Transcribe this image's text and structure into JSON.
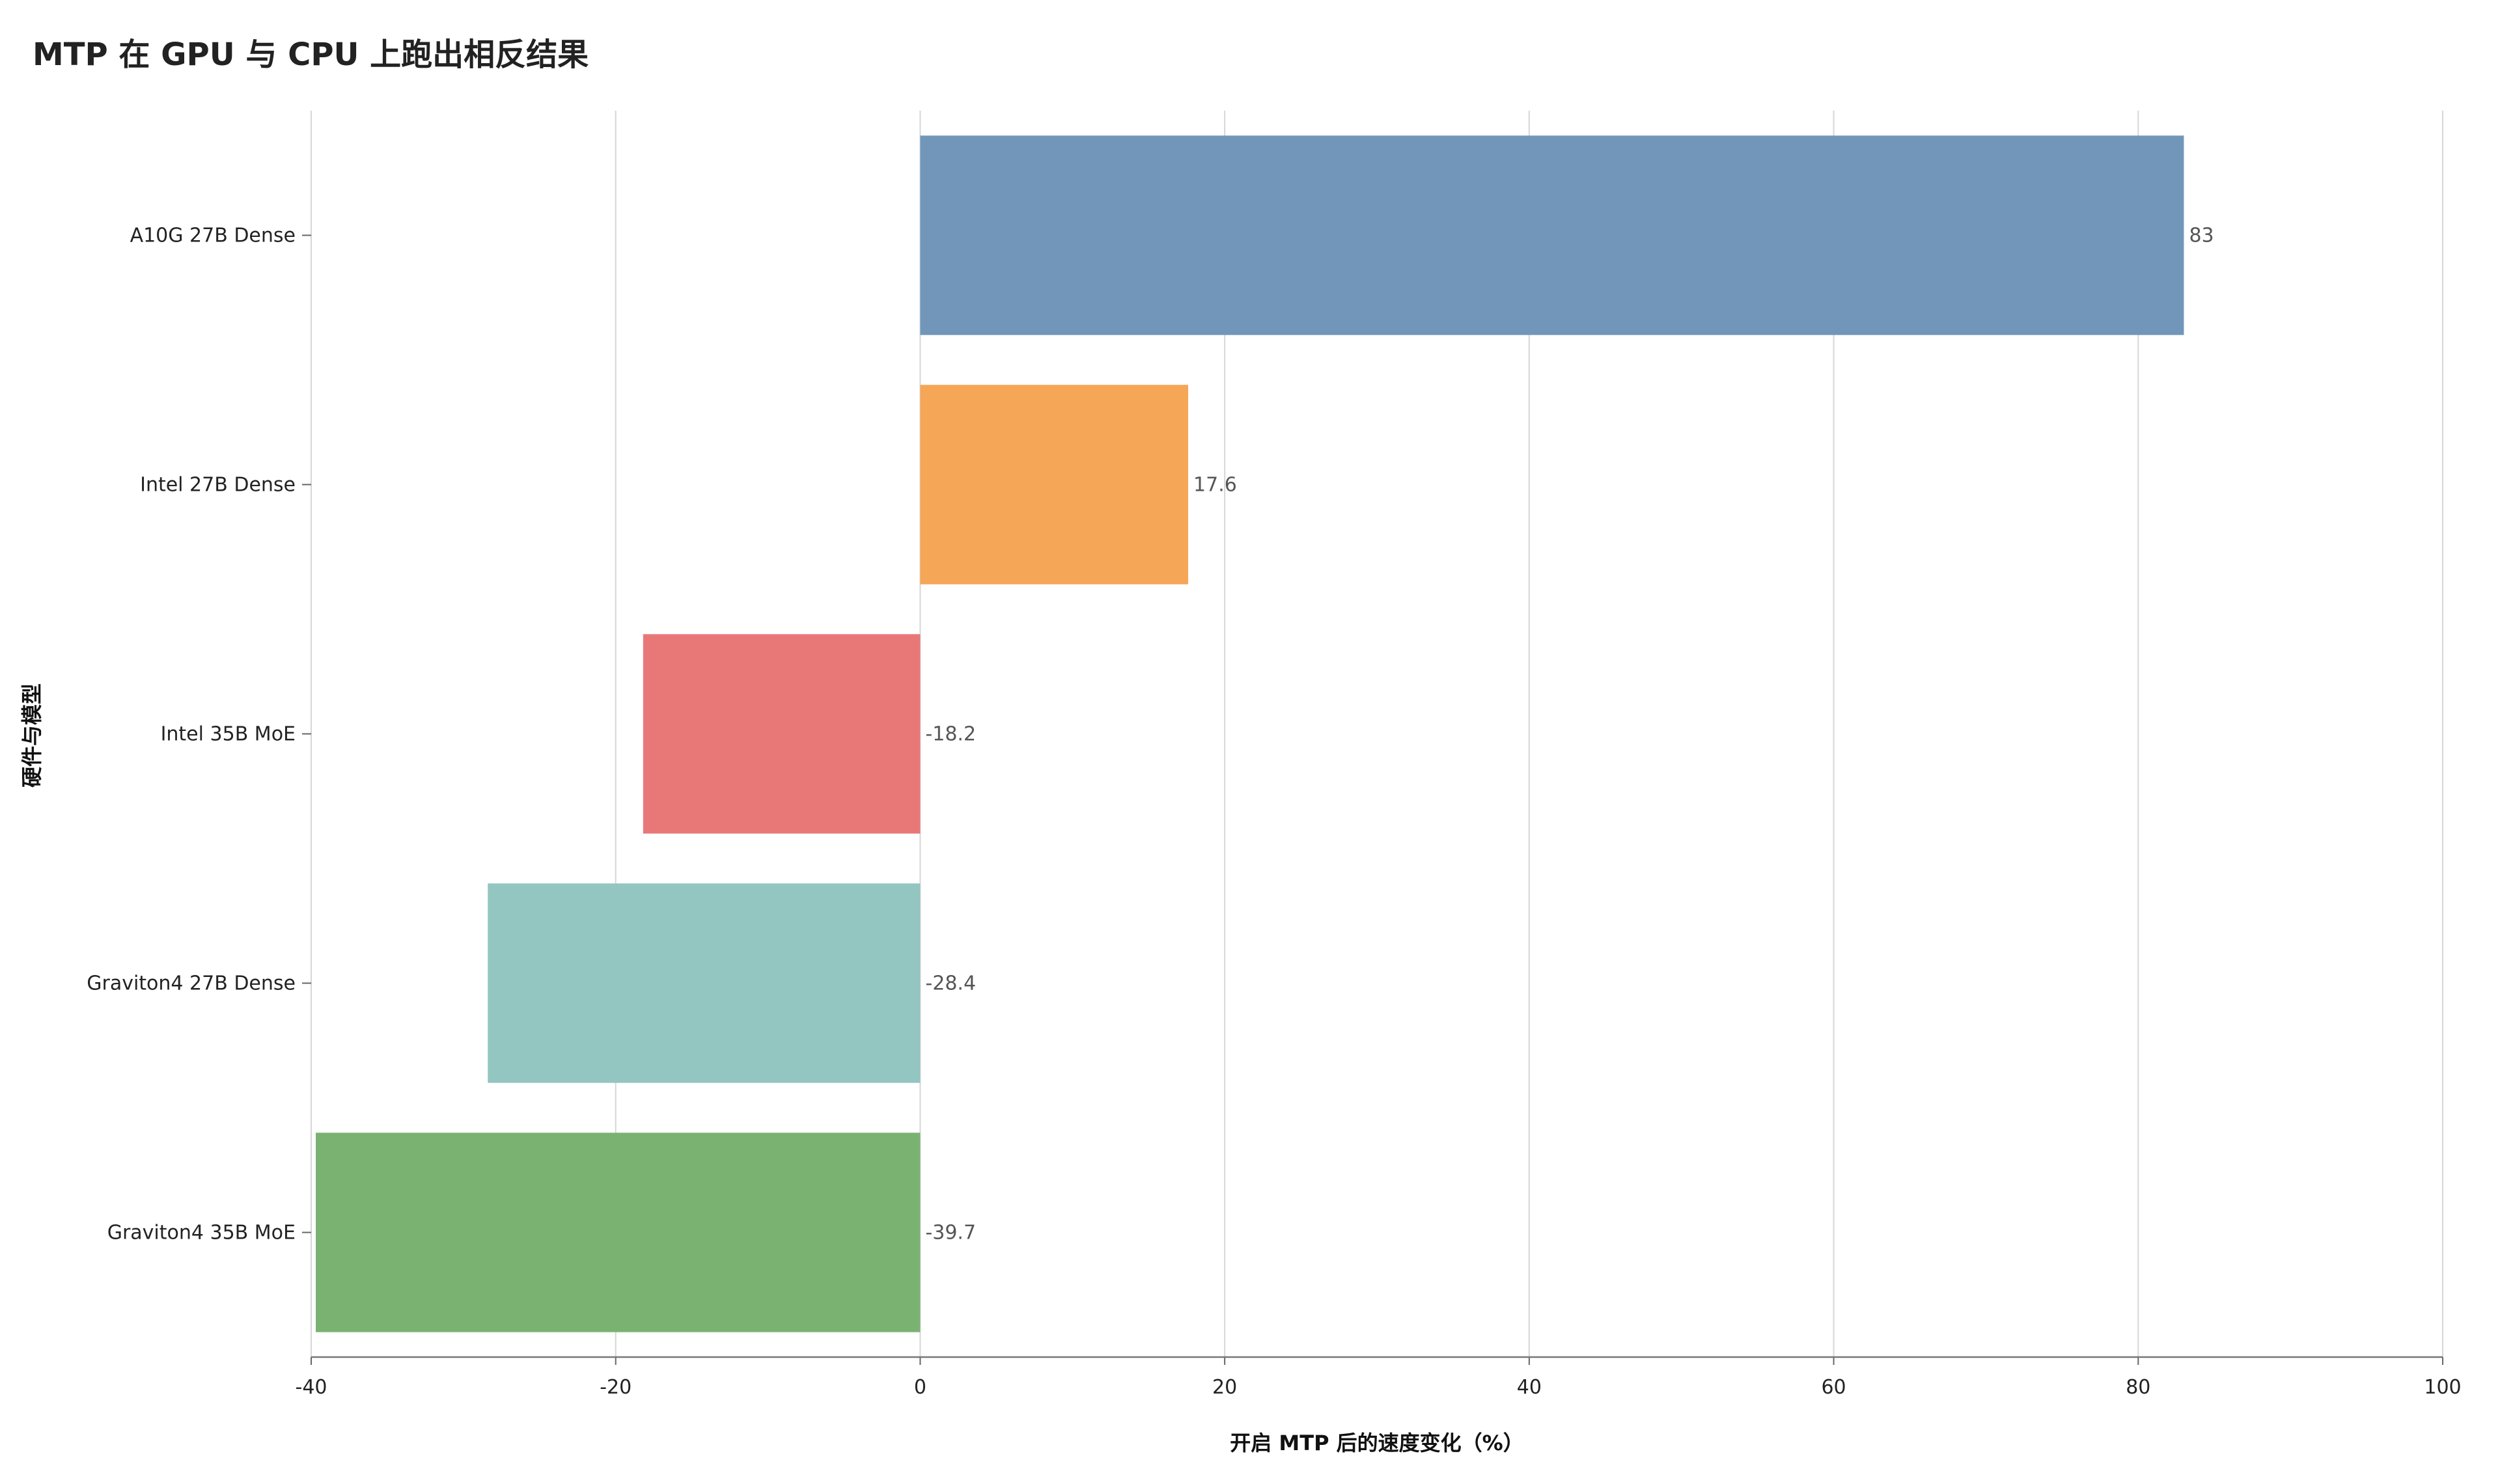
{
  "title": "MTP 在 GPU 与 CPU 上跑出相反结果",
  "chart_data": {
    "type": "bar",
    "orientation": "horizontal",
    "title": "MTP 在 GPU 与 CPU 上跑出相反结果",
    "xlabel": "开启 MTP 后的速度变化（%）",
    "ylabel": "硬件与模型",
    "categories": [
      "A10G 27B Dense",
      "Intel 27B Dense",
      "Intel 35B MoE",
      "Graviton4 27B Dense",
      "Graviton4 35B MoE"
    ],
    "values": [
      83,
      17.6,
      -18.2,
      -28.4,
      -39.7
    ],
    "value_labels": [
      "83",
      "17.6",
      "-18.2",
      "-28.4",
      "-39.7"
    ],
    "colors": [
      "#7196b9",
      "#f5a656",
      "#e87878",
      "#93c5c1",
      "#7ab272"
    ],
    "xlim": [
      -40,
      100
    ],
    "xticks": [
      -40,
      -20,
      0,
      20,
      40,
      60,
      80,
      100
    ],
    "xtick_labels": [
      "-40",
      "-20",
      "0",
      "20",
      "40",
      "60",
      "80",
      "100"
    ],
    "grid": "vertical",
    "legend": "none"
  }
}
